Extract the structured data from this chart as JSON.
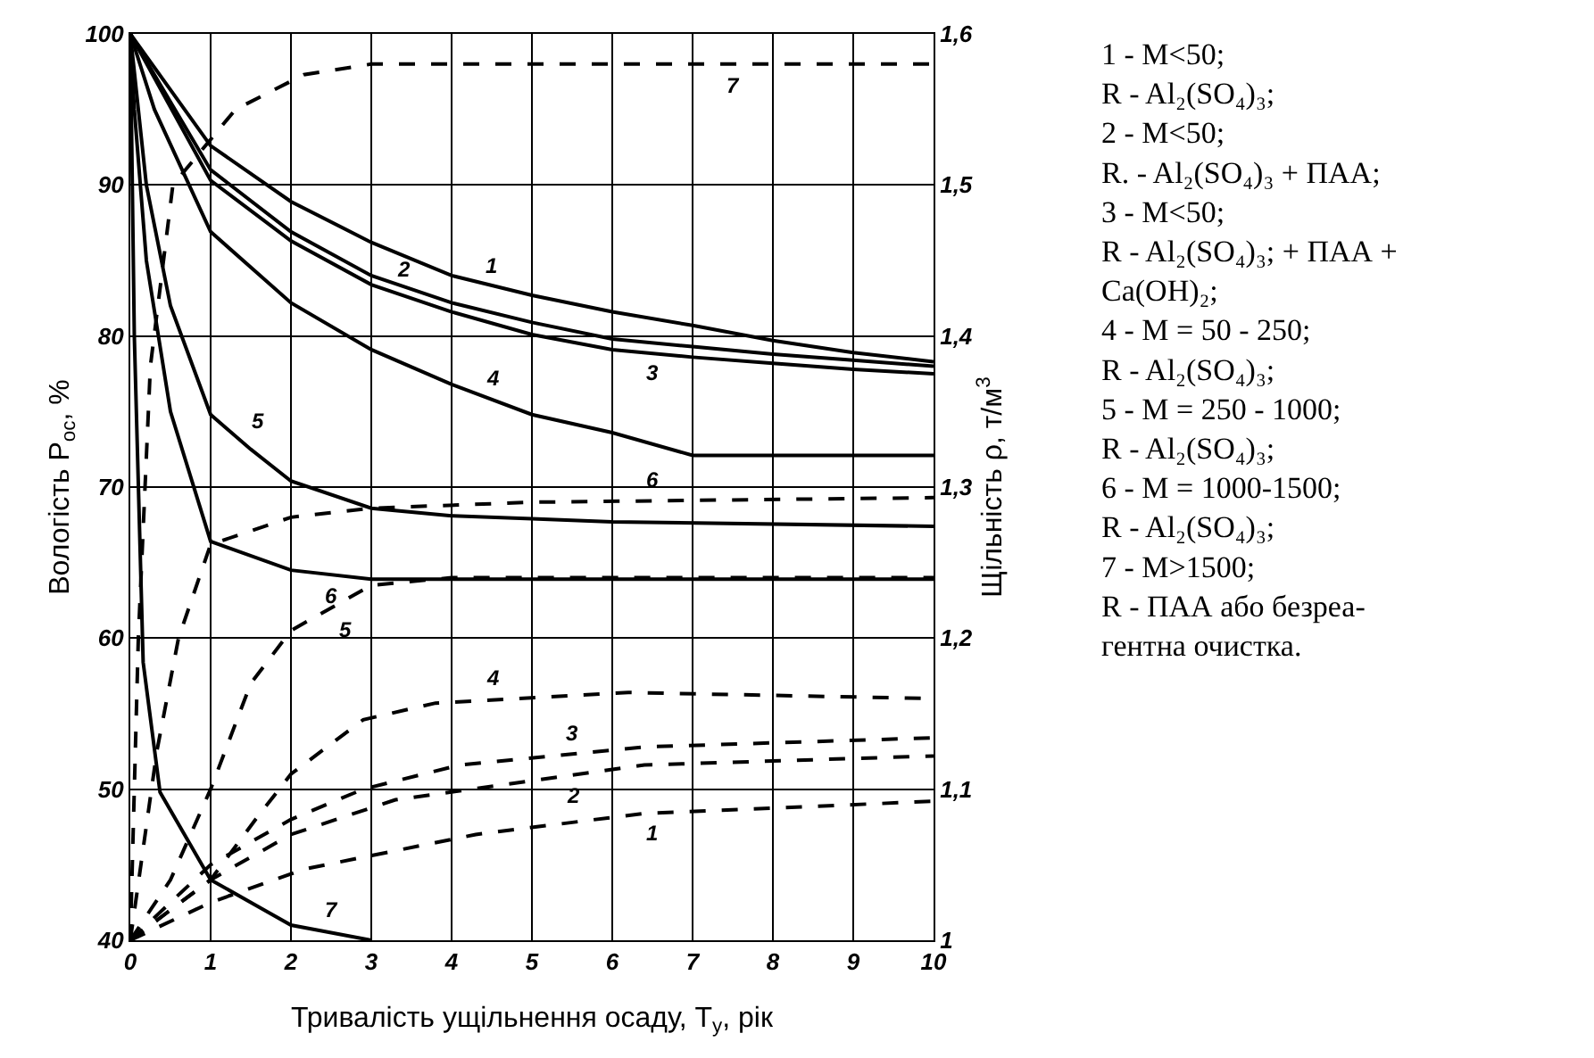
{
  "chart_data": {
    "type": "line",
    "xlabel": "Тривалість ущільнення осаду, T$_{у}$, рік",
    "ylabel": "Вологість P$_{ос}$, %",
    "y2label": "Щільність ρ, т/м$^{3}$",
    "xlim": [
      0,
      10
    ],
    "xticks": [
      0,
      1,
      2,
      3,
      4,
      5,
      6,
      7,
      8,
      9,
      10
    ],
    "ylim": [
      40,
      100
    ],
    "yticks": [
      40,
      50,
      60,
      70,
      80,
      90,
      100
    ],
    "y2lim": [
      1,
      1.6
    ],
    "y2ticks": [
      1,
      {
        "value": 1.1,
        "label": "1,1"
      },
      {
        "value": 1.2,
        "label": "1,2"
      },
      {
        "value": 1.3,
        "label": "1,3"
      },
      {
        "value": 1.4,
        "label": "1,4"
      },
      {
        "value": 1.5,
        "label": "1,5"
      },
      {
        "value": 1.6,
        "label": "1,6"
      }
    ],
    "grid": true,
    "series": [
      {
        "name": "1",
        "color": "#000000",
        "line_style": "solid",
        "x": [
          0,
          1,
          2,
          3,
          4,
          5,
          6,
          7,
          8,
          9,
          10
        ],
        "values": [
          100,
          92.6,
          88.9,
          86.2,
          84,
          82.7,
          81.6,
          80.7,
          79.7,
          78.9,
          78.3
        ]
      },
      {
        "name": "2",
        "color": "#000000",
        "line_style": "solid",
        "x": [
          0,
          1,
          2,
          3,
          4,
          5,
          6,
          7,
          8,
          9,
          10
        ],
        "values": [
          100,
          91,
          86.9,
          84,
          82.2,
          80.9,
          79.8,
          79.3,
          78.8,
          78.4,
          78.0
        ]
      },
      {
        "name": "3",
        "color": "#000000",
        "line_style": "solid",
        "x": [
          0,
          1,
          2,
          3,
          4,
          5,
          6,
          7,
          8,
          9,
          10
        ],
        "values": [
          100,
          90.3,
          86.3,
          83.4,
          81.6,
          80.1,
          79.1,
          78.6,
          78.2,
          77.8,
          77.5
        ]
      },
      {
        "name": "4",
        "color": "#000000",
        "line_style": "solid",
        "x": [
          0,
          0.3,
          1,
          2,
          3,
          4,
          5,
          6,
          7,
          8,
          10
        ],
        "values": [
          100,
          95,
          86.9,
          82.2,
          79.1,
          76.8,
          74.8,
          73.6,
          72.1,
          72.1,
          72.1
        ]
      },
      {
        "name": "5",
        "color": "#000000",
        "line_style": "solid",
        "x": [
          0,
          0.2,
          0.5,
          1,
          1.5,
          2,
          3,
          4,
          5,
          6,
          10
        ],
        "values": [
          100,
          90,
          82,
          74.8,
          72.5,
          70.4,
          68.6,
          68.1,
          67.9,
          67.7,
          67.4
        ]
      },
      {
        "name": "6",
        "color": "#000000",
        "line_style": "solid",
        "x": [
          0,
          0.05,
          0.2,
          0.5,
          1,
          2,
          3,
          10
        ],
        "values": [
          100,
          95,
          85,
          75,
          66.4,
          64.5,
          63.9,
          63.9
        ]
      },
      {
        "name": "7",
        "color": "#000000",
        "line_style": "solid",
        "x": [
          0,
          0.05,
          0.16,
          0.37,
          1,
          2,
          3
        ],
        "values": [
          100,
          80,
          58.4,
          49.8,
          44,
          41,
          40
        ]
      },
      {
        "name": "1",
        "color": "#000000",
        "line_style": "dashed",
        "axis": "y2",
        "x": [
          0,
          1,
          2.16,
          4.3,
          6.4,
          10
        ],
        "values": [
          1.0,
          1.025,
          1.047,
          1.07,
          1.084,
          1.092
        ]
      },
      {
        "name": "2",
        "color": "#000000",
        "line_style": "dashed",
        "axis": "y2",
        "x": [
          0,
          1,
          2,
          3.3,
          6.4,
          10
        ],
        "values": [
          1.0,
          1.04,
          1.07,
          1.093,
          1.116,
          1.122
        ]
      },
      {
        "name": "3",
        "color": "#000000",
        "line_style": "dashed",
        "axis": "y2",
        "x": [
          0,
          1,
          2,
          2.9,
          4.1,
          6.4,
          10
        ],
        "values": [
          1.0,
          1.05,
          1.08,
          1.1,
          1.116,
          1.128,
          1.134
        ]
      },
      {
        "name": "4",
        "color": "#000000",
        "line_style": "dashed",
        "axis": "y2",
        "x": [
          0,
          1,
          1.56,
          2,
          2.9,
          3.8,
          6.2,
          10
        ],
        "values": [
          1.0,
          1.04,
          1.08,
          1.11,
          1.146,
          1.157,
          1.164,
          1.16
        ]
      },
      {
        "name": "5",
        "color": "#000000",
        "line_style": "dashed",
        "axis": "y2",
        "x": [
          0,
          0.5,
          1,
          1.5,
          2,
          3,
          4,
          10
        ],
        "values": [
          1.0,
          1.04,
          1.1,
          1.17,
          1.205,
          1.235,
          1.24,
          1.24
        ]
      },
      {
        "name": "6",
        "color": "#000000",
        "line_style": "dashed",
        "axis": "y2",
        "x": [
          0,
          0.33,
          0.6,
          1,
          2,
          3,
          5,
          10
        ],
        "values": [
          1.0,
          1.125,
          1.2,
          1.262,
          1.28,
          1.286,
          1.29,
          1.293
        ]
      },
      {
        "name": "7",
        "color": "#000000",
        "line_style": "dashed",
        "axis": "y2",
        "x": [
          0,
          0.1,
          0.25,
          0.53,
          1.31,
          2.16,
          3,
          10
        ],
        "values": [
          1.0,
          1.2,
          1.38,
          1.5,
          1.55,
          1.573,
          1.58,
          1.58
        ]
      }
    ],
    "annotations": [
      "1 - M<50;\nR - Al₂(SO₄)₃;\n2 - M<50;\nR. - Al₂(SO₄)₃ + ПАА;\n3 - M<50;\nR - Al₂(SO₄)₃; + ПАА +\nCa(OH)₂;\n4 - M = 50 - 250;\nR - Al₂(SO₄)₃;\n5 - M = 250 - 1000;\nR - Al₂(SO₄)₃;\n6 - M = 1000-1500;\nR - Al₂(SO₄)₃;\n7 - M>1500;\nR - ПАА або безреа-\nгентна очистка."
    ]
  }
}
